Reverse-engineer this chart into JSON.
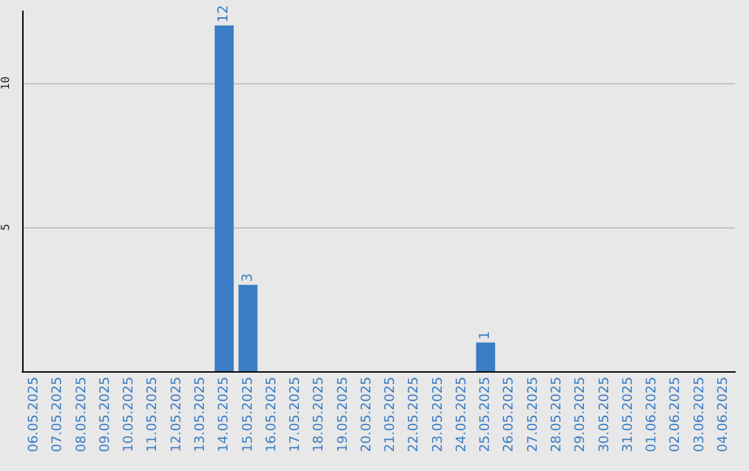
{
  "chart_data": {
    "type": "bar",
    "categories": [
      "06.05.2025",
      "07.05.2025",
      "08.05.2025",
      "09.05.2025",
      "10.05.2025",
      "11.05.2025",
      "12.05.2025",
      "13.05.2025",
      "14.05.2025",
      "15.05.2025",
      "16.05.2025",
      "17.05.2025",
      "18.05.2025",
      "19.05.2025",
      "20.05.2025",
      "21.05.2025",
      "22.05.2025",
      "23.05.2025",
      "24.05.2025",
      "25.05.2025",
      "26.05.2025",
      "27.05.2025",
      "28.05.2025",
      "29.05.2025",
      "30.05.2025",
      "31.05.2025",
      "01.06.2025",
      "02.06.2025",
      "03.06.2025",
      "04.06.2025"
    ],
    "values": [
      0,
      0,
      0,
      0,
      0,
      0,
      0,
      0,
      12,
      3,
      0,
      0,
      0,
      0,
      0,
      0,
      0,
      0,
      0,
      1,
      0,
      0,
      0,
      0,
      0,
      0,
      0,
      0,
      0,
      0
    ],
    "value_labels": [
      null,
      null,
      null,
      null,
      null,
      null,
      null,
      null,
      "12",
      "3",
      null,
      null,
      null,
      null,
      null,
      null,
      null,
      null,
      null,
      "1",
      null,
      null,
      null,
      null,
      null,
      null,
      null,
      null,
      null,
      null
    ],
    "color": "#3b7dc4",
    "ylim": [
      0,
      12.5
    ],
    "yticks": [
      5,
      10
    ],
    "grid": "y"
  }
}
